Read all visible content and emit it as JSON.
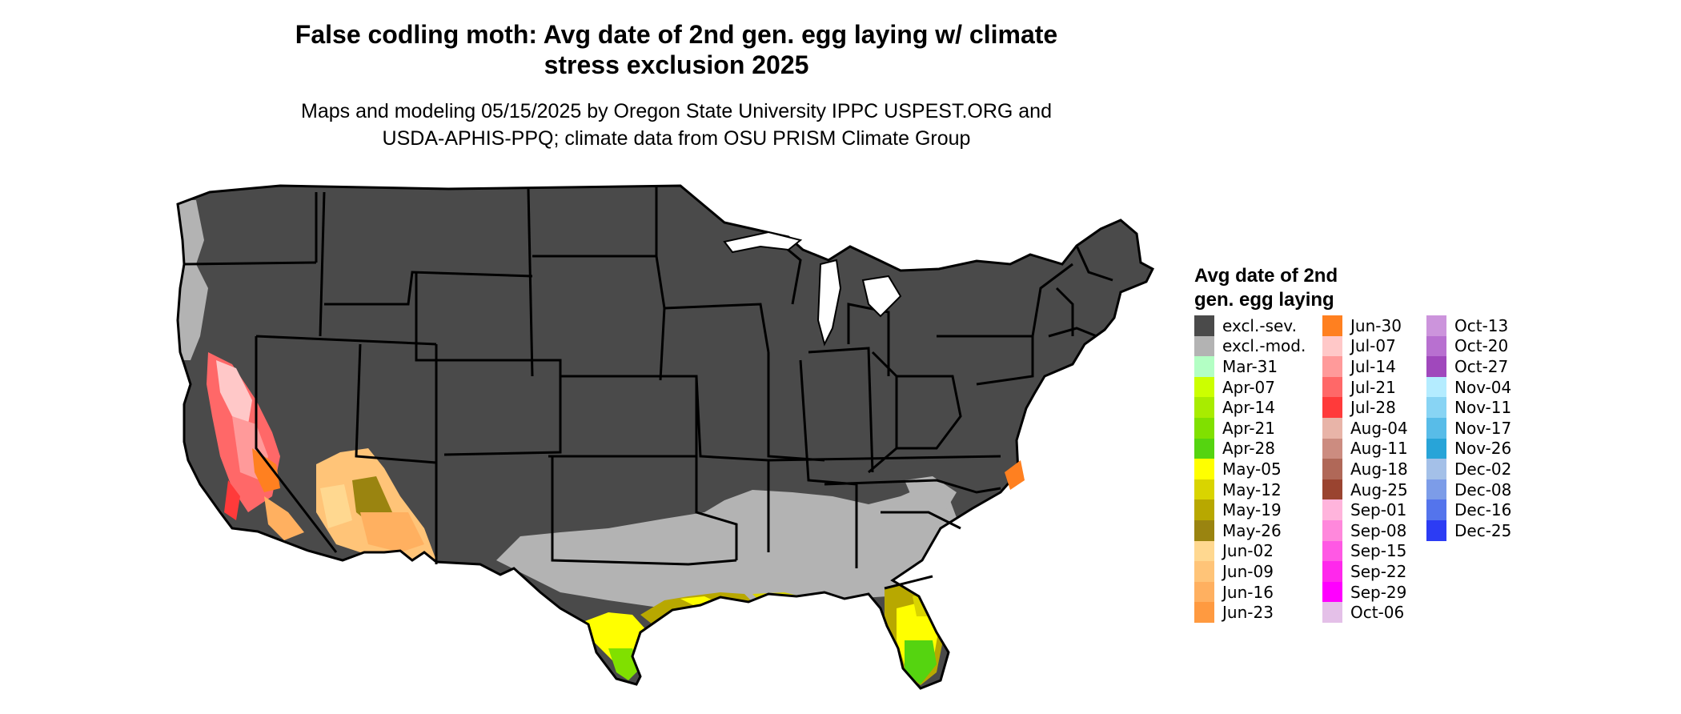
{
  "title": "False codling moth: Avg date of 2nd gen. egg laying w/ climate stress exclusion 2025",
  "title_line1": "False codling moth: Avg date of 2nd gen. egg laying w/ climate",
  "title_line2": "stress exclusion 2025",
  "subtitle_line1": "Maps and modeling 05/15/2025 by Oregon State University IPPC USPEST.ORG and",
  "subtitle_line2": "USDA-APHIS-PPQ; climate data from OSU PRISM Climate Group",
  "legend": {
    "title_line1": "Avg date of 2nd",
    "title_line2": "gen. egg laying",
    "columns": [
      [
        {
          "label": "excl.-sev.",
          "color": "#4a4a4a"
        },
        {
          "label": "excl.-mod.",
          "color": "#b3b3b3"
        },
        {
          "label": "Mar-31",
          "color": "#b3ffc4"
        },
        {
          "label": "Apr-07",
          "color": "#ccff00"
        },
        {
          "label": "Apr-14",
          "color": "#a8ec00"
        },
        {
          "label": "Apr-21",
          "color": "#80e000"
        },
        {
          "label": "Apr-28",
          "color": "#55d410"
        },
        {
          "label": "May-05",
          "color": "#ffff00"
        },
        {
          "label": "May-12",
          "color": "#d9d400"
        },
        {
          "label": "May-19",
          "color": "#b8a800"
        },
        {
          "label": "May-26",
          "color": "#9a8410"
        },
        {
          "label": "Jun-02",
          "color": "#ffd890"
        },
        {
          "label": "Jun-09",
          "color": "#ffc478"
        },
        {
          "label": "Jun-16",
          "color": "#ffb060"
        },
        {
          "label": "Jun-23",
          "color": "#ff9a40"
        }
      ],
      [
        {
          "label": "Jun-30",
          "color": "#ff8020"
        },
        {
          "label": "Jul-07",
          "color": "#ffc8c8"
        },
        {
          "label": "Jul-14",
          "color": "#ff9a9a"
        },
        {
          "label": "Jul-21",
          "color": "#ff6868"
        },
        {
          "label": "Jul-28",
          "color": "#ff3a3a"
        },
        {
          "label": "Aug-04",
          "color": "#e8b4a8"
        },
        {
          "label": "Aug-11",
          "color": "#cc8c80"
        },
        {
          "label": "Aug-18",
          "color": "#b06858"
        },
        {
          "label": "Aug-25",
          "color": "#9a4430"
        },
        {
          "label": "Sep-01",
          "color": "#ffb4dc"
        },
        {
          "label": "Sep-08",
          "color": "#ff88dc"
        },
        {
          "label": "Sep-15",
          "color": "#ff58e4"
        },
        {
          "label": "Sep-22",
          "color": "#ff28ec"
        },
        {
          "label": "Sep-29",
          "color": "#ff00ff"
        },
        {
          "label": "Oct-06",
          "color": "#e4c0e8"
        }
      ],
      [
        {
          "label": "Oct-13",
          "color": "#cc94dc"
        },
        {
          "label": "Oct-20",
          "color": "#b870d0"
        },
        {
          "label": "Oct-27",
          "color": "#a048bc"
        },
        {
          "label": "Nov-04",
          "color": "#b4ecff"
        },
        {
          "label": "Nov-11",
          "color": "#88d4f4"
        },
        {
          "label": "Nov-17",
          "color": "#58bce8"
        },
        {
          "label": "Nov-26",
          "color": "#28a4d8"
        },
        {
          "label": "Dec-02",
          "color": "#a4c0e8"
        },
        {
          "label": "Dec-08",
          "color": "#7c9ce8"
        },
        {
          "label": "Dec-16",
          "color": "#5474ec"
        },
        {
          "label": "Dec-25",
          "color": "#2c3cf4"
        }
      ]
    ]
  }
}
